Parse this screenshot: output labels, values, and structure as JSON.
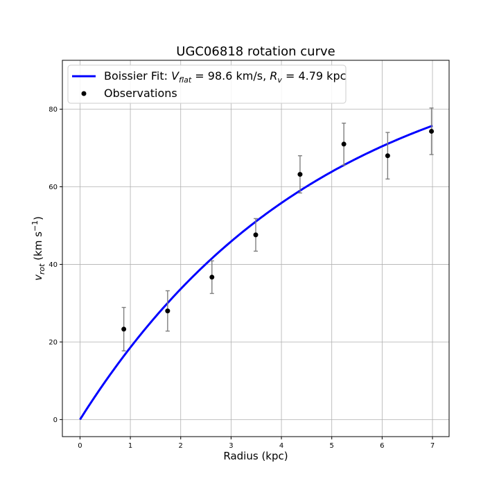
{
  "chart_data": {
    "type": "scatter",
    "title": "UGC06818 rotation curve",
    "xlabel": "Radius (kpc)",
    "ylabel": "v_rot (km s^-1)",
    "xlim": [
      -0.35,
      7.33
    ],
    "ylim": [
      -4.4,
      92.6
    ],
    "xticks": [
      0,
      1,
      2,
      3,
      4,
      5,
      6,
      7
    ],
    "yticks": [
      0,
      20,
      40,
      60,
      80
    ],
    "grid": true,
    "legend_location": "top-left",
    "series": [
      {
        "name": "Boissier Fit",
        "kind": "line",
        "color": "#0000ff",
        "model": "boissier",
        "params": {
          "V_flat": 98.6,
          "R_v": 4.79
        },
        "x_range": [
          0,
          7.0
        ],
        "legend_label": {
          "prefix": "Boissier Fit: ",
          "v_symbol": "V",
          "v_sub": "flat",
          "v_value": " = 98.6 km/s, ",
          "r_symbol": "R",
          "r_sub": "v",
          "r_value": " = 4.79 kpc"
        }
      },
      {
        "name": "Observations",
        "kind": "errorbar",
        "marker_color": "#000000",
        "errorbar_color": "#7f7f7f",
        "x": [
          0.87,
          1.74,
          2.62,
          3.49,
          4.37,
          5.24,
          6.11,
          6.98
        ],
        "y": [
          23.3,
          28.0,
          36.7,
          47.6,
          63.2,
          71.0,
          68.0,
          74.3
        ],
        "yerr": [
          5.6,
          5.2,
          4.2,
          4.2,
          4.8,
          5.4,
          6.0,
          6.0
        ]
      }
    ]
  }
}
